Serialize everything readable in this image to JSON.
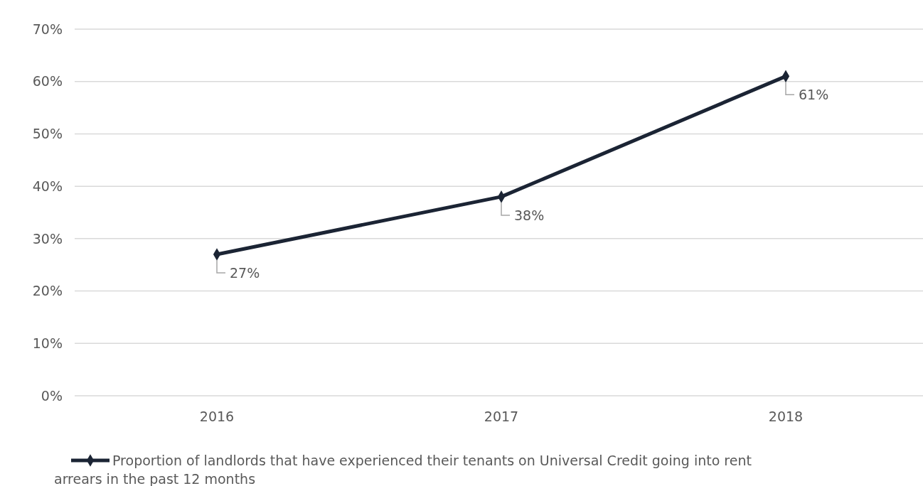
{
  "chart_data": {
    "type": "line",
    "categories": [
      "2016",
      "2017",
      "2018"
    ],
    "series": [
      {
        "name": "Proportion of landlords that have experienced their tenants on Universal Credit going into rent arrears in the past 12 months",
        "color": "#1b2434",
        "values": [
          27,
          38,
          61
        ],
        "value_labels": [
          "27%",
          "38%",
          "61%"
        ]
      }
    ],
    "ylim": [
      0,
      70
    ],
    "yticks": [
      {
        "value": 0,
        "label": "0%"
      },
      {
        "value": 10,
        "label": "10%"
      },
      {
        "value": 20,
        "label": "20%"
      },
      {
        "value": 30,
        "label": "30%"
      },
      {
        "value": 40,
        "label": "40%"
      },
      {
        "value": 50,
        "label": "50%"
      },
      {
        "value": 60,
        "label": "60%"
      },
      {
        "value": 70,
        "label": "70%"
      }
    ],
    "grid": "y",
    "legend": "bottom",
    "marker": "diamond",
    "line_style": "solid"
  }
}
